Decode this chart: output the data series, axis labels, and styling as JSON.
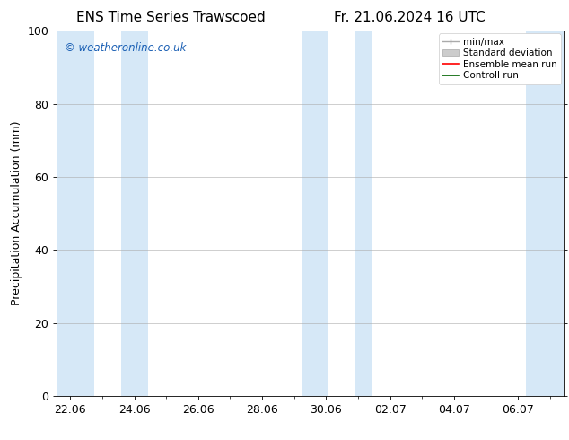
{
  "title_left": "ENS Time Series Trawscoed",
  "title_right": "Fr. 21.06.2024 16 UTC",
  "ylabel": "Precipitation Accumulation (mm)",
  "ylim": [
    0,
    100
  ],
  "yticks": [
    0,
    20,
    40,
    60,
    80,
    100
  ],
  "background_color": "#ffffff",
  "plot_bg_color": "#ffffff",
  "shaded_band_color": "#d6e8f7",
  "watermark_text": "© weatheronline.co.uk",
  "watermark_color": "#1a5fb4",
  "legend_items": [
    {
      "label": "min/max",
      "color": "#aaaaaa",
      "style": "errorbar"
    },
    {
      "label": "Standard deviation",
      "color": "#cccccc",
      "style": "bar"
    },
    {
      "label": "Ensemble mean run",
      "color": "#ff0000",
      "style": "line"
    },
    {
      "label": "Controll run",
      "color": "#008000",
      "style": "line"
    }
  ],
  "shaded_bands": [
    [
      21.58,
      22.75
    ],
    [
      23.58,
      24.42
    ],
    [
      29.25,
      30.08
    ],
    [
      30.92,
      31.42
    ],
    [
      36.25,
      37.42
    ]
  ],
  "xtick_labels": [
    "22.06",
    "24.06",
    "26.06",
    "28.06",
    "30.06",
    "02.07",
    "04.07",
    "06.07"
  ],
  "xtick_positions": [
    22.0,
    24.0,
    26.0,
    28.0,
    30.0,
    32.0,
    34.0,
    36.0
  ],
  "xlim": [
    21.58,
    37.42
  ],
  "grid_color": "#aaaaaa",
  "tick_color": "#000000",
  "font_size": 9,
  "title_font_size": 11
}
